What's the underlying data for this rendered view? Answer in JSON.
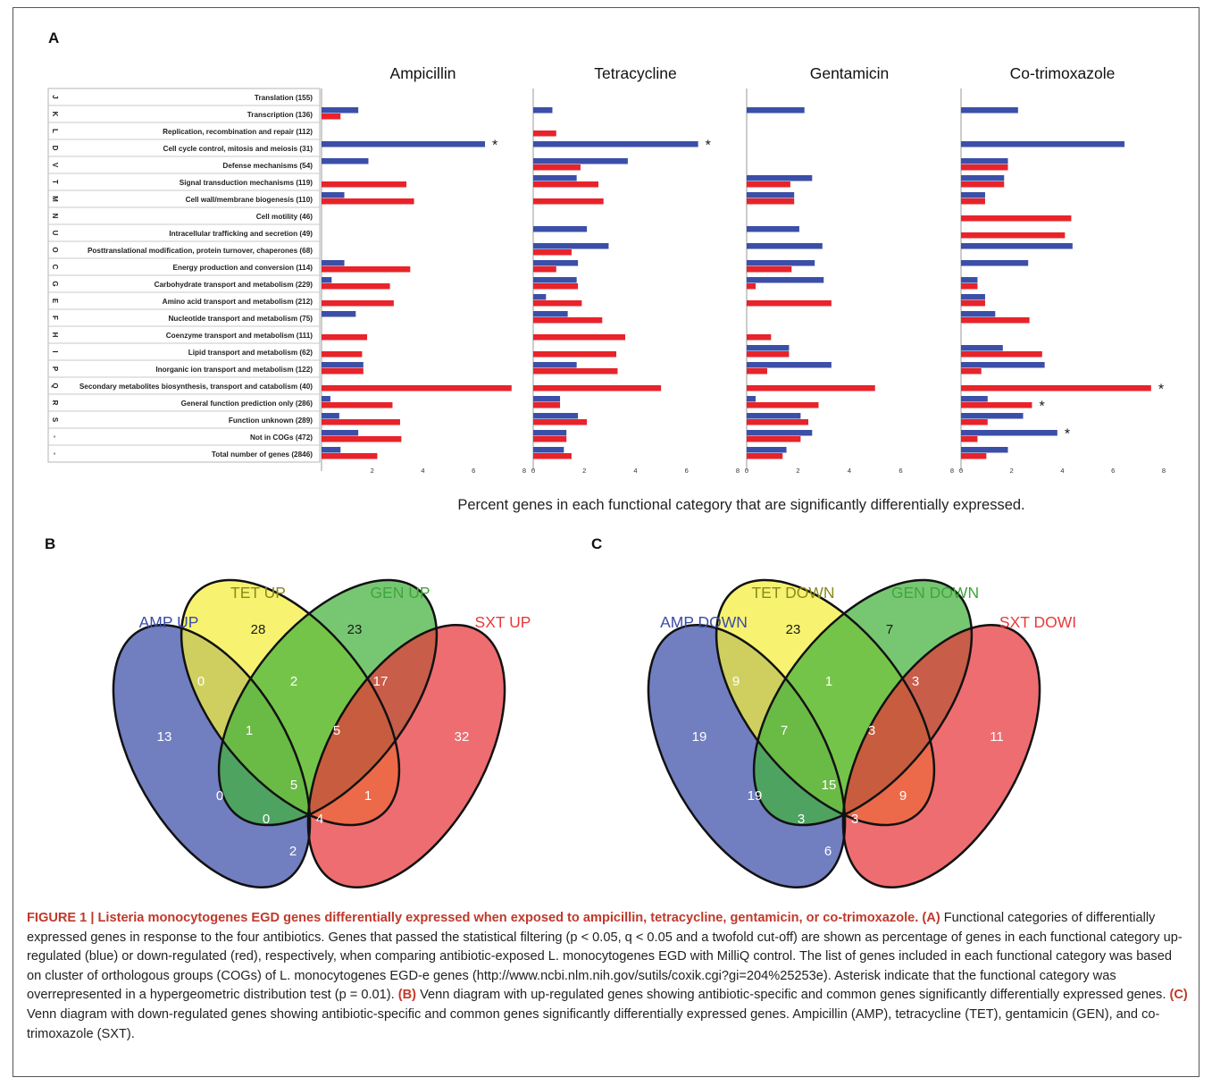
{
  "panel_labels": {
    "a": "A",
    "b": "B",
    "c": "C"
  },
  "chart_data": {
    "type": "bar",
    "orientation": "horizontal",
    "panels": [
      "Ampicillin",
      "Tetracycline",
      "Gentamicin",
      "Co-trimoxazole"
    ],
    "xlim": [
      0,
      8
    ],
    "xticks": [
      0,
      2,
      4,
      6,
      8
    ],
    "xlabel": "Percent genes in each functional category that are significantly differentially expressed.",
    "series_colors": {
      "up": "#3b4fa8",
      "down": "#e8232a"
    },
    "categories": [
      {
        "code": "J",
        "name": "Translation (155)"
      },
      {
        "code": "K",
        "name": "Transcription (136)"
      },
      {
        "code": "L",
        "name": "Replication, recombination and repair (112)"
      },
      {
        "code": "D",
        "name": "Cell cycle control, mitosis and meiosis (31)"
      },
      {
        "code": "V",
        "name": "Defense mechanisms (54)"
      },
      {
        "code": "T",
        "name": "Signal transduction mechanisms (119)"
      },
      {
        "code": "M",
        "name": "Cell wall/membrane biogenesis (110)"
      },
      {
        "code": "N",
        "name": "Cell motility (46)"
      },
      {
        "code": "U",
        "name": "Intracellular trafficking and secretion (49)"
      },
      {
        "code": "O",
        "name": "Posttranslational modification, protein turnover, chaperones (68)"
      },
      {
        "code": "C",
        "name": "Energy production and conversion (114)"
      },
      {
        "code": "G",
        "name": "Carbohydrate transport and metabolism (229)"
      },
      {
        "code": "E",
        "name": "Amino acid transport and metabolism (212)"
      },
      {
        "code": "F",
        "name": "Nucleotide transport and metabolism (75)"
      },
      {
        "code": "H",
        "name": "Coenzyme transport and metabolism (111)"
      },
      {
        "code": "I",
        "name": "Lipid transport and metabolism (62)"
      },
      {
        "code": "P",
        "name": "Inorganic ion transport and metabolism (122)"
      },
      {
        "code": "Q",
        "name": "Secondary metabolites biosynthesis, transport and catabolism (40)"
      },
      {
        "code": "R",
        "name": "General function prediction only (286)"
      },
      {
        "code": "S",
        "name": "Function unknown (289)"
      },
      {
        "code": "-",
        "name": "Not in COGs (472)"
      },
      {
        "code": "-",
        "name": "Total number of genes (2846)"
      }
    ],
    "data": {
      "Ampicillin": {
        "up": [
          0,
          1.45,
          0,
          6.45,
          1.85,
          0,
          0.9,
          0,
          0,
          0,
          0.9,
          0.4,
          0,
          1.35,
          0,
          0,
          1.65,
          0,
          0.35,
          0.7,
          1.45,
          0.75
        ],
        "down": [
          0,
          0.75,
          0,
          0,
          0,
          3.35,
          3.65,
          0,
          0,
          0,
          3.5,
          2.7,
          2.85,
          0,
          1.8,
          1.6,
          1.65,
          7.5,
          2.8,
          3.1,
          3.15,
          2.2
        ],
        "stars": [
          {
            "row": 3,
            "series": "up"
          }
        ]
      },
      "Tetracycline": {
        "up": [
          0,
          0.75,
          0,
          6.45,
          3.7,
          1.7,
          0,
          0,
          2.1,
          2.95,
          1.75,
          1.7,
          0.5,
          1.35,
          0,
          0,
          1.7,
          0,
          1.05,
          1.75,
          1.3,
          1.2
        ],
        "down": [
          0,
          0,
          0.9,
          0,
          1.85,
          2.55,
          2.75,
          0,
          0,
          1.5,
          0.9,
          1.75,
          1.9,
          2.7,
          3.6,
          3.25,
          3.3,
          5.0,
          1.05,
          2.1,
          1.3,
          1.5
        ],
        "stars": [
          {
            "row": 3,
            "series": "up"
          }
        ]
      },
      "Gentamicin": {
        "up": [
          0,
          2.25,
          0,
          0,
          0,
          2.55,
          1.85,
          0,
          2.05,
          2.95,
          2.65,
          3.0,
          0,
          0,
          0,
          1.65,
          3.3,
          0,
          0.35,
          2.1,
          2.55,
          1.55
        ],
        "down": [
          0,
          0,
          0,
          0,
          0,
          1.7,
          1.85,
          0,
          0,
          0,
          1.75,
          0.35,
          3.3,
          0,
          0.95,
          1.65,
          0.8,
          5.0,
          2.8,
          2.4,
          2.1,
          1.4
        ],
        "stars": []
      },
      "Co-trimoxazole": {
        "up": [
          0,
          2.25,
          0,
          6.45,
          1.85,
          1.7,
          0.95,
          0,
          0,
          4.4,
          2.65,
          0.65,
          0.95,
          1.35,
          0,
          1.65,
          3.3,
          0,
          1.05,
          2.45,
          3.8,
          1.85
        ],
        "down": [
          0,
          0,
          0,
          0,
          1.85,
          1.7,
          0.95,
          4.35,
          4.1,
          0,
          0,
          0.65,
          0.95,
          2.7,
          0,
          3.2,
          0.8,
          7.5,
          2.8,
          1.05,
          0.65,
          1.0
        ],
        "stars": [
          {
            "row": 17,
            "series": "down"
          },
          {
            "row": 18,
            "series": "down"
          },
          {
            "row": 20,
            "series": "up"
          }
        ]
      }
    }
  },
  "venn_b": {
    "labels": {
      "amp": "AMP UP",
      "tet": "TET UP",
      "gen": "GEN UP",
      "sxt": "SXT UP"
    },
    "counts": {
      "amp_only": "13",
      "tet_only": "28",
      "gen_only": "23",
      "sxt_only": "32",
      "amp_tet": "0",
      "tet_gen": "2",
      "gen_sxt": "17",
      "amp_tet_gen": "1",
      "tet_gen_sxt": "5",
      "all": "5",
      "amp_gen": "0",
      "tet_sxt": "1",
      "amp_gen_sxt": "0",
      "amp_tet_sxt": "4",
      "amp_sxt": "2"
    }
  },
  "venn_c": {
    "labels": {
      "amp": "AMP DOWN",
      "tet": "TET DOWN",
      "gen": "GEN DOWN",
      "sxt": "SXT DOWI"
    },
    "counts": {
      "amp_only": "19",
      "tet_only": "23",
      "gen_only": "7",
      "sxt_only": "11",
      "amp_tet": "9",
      "tet_gen": "1",
      "gen_sxt": "3",
      "amp_tet_gen": "7",
      "tet_gen_sxt": "3",
      "all": "15",
      "amp_gen": "19",
      "tet_sxt": "9",
      "amp_gen_sxt": "3",
      "amp_tet_sxt": "3",
      "amp_sxt": "6"
    }
  },
  "venn_colors": {
    "amp": "#3a4ca8",
    "tet": "#f4ef3a",
    "gen": "#43b23c",
    "sxt": "#e8343a"
  },
  "venn_label_colors": {
    "amp": "#3a4ca8",
    "tet": "#8a8a1a",
    "gen": "#3ea63a",
    "sxt": "#e83a3a"
  },
  "caption": {
    "title": "FIGURE 1 | Listeria monocytogenes EGD genes differentially expressed when exposed to ampicillin, tetracycline, gentamicin, or co-trimoxazole.",
    "part_a_label": "(A)",
    "part_a": "Functional categories of differentially expressed genes in response to the four antibiotics. Genes that passed the statistical filtering (p < 0.05, q < 0.05 and a twofold cut-off) are shown as percentage of genes in each functional category up-regulated (blue) or down-regulated (red), respectively, when comparing antibiotic-exposed L. monocytogenes EGD with MilliQ control. The list of genes included in each functional category was based on cluster of orthologous groups (COGs) of L. monocytogenes EGD-e genes (http://www.ncbi.nlm.nih.gov/sutils/coxik.cgi?gi=204%25253e). Asterisk indicate that the functional category was overrepresented in a hypergeometric distribution test (p = 0.01).",
    "part_b_label": "(B)",
    "part_b": "Venn diagram with up-regulated genes showing antibiotic-specific and common genes significantly differentially expressed genes.",
    "part_c_label": "(C)",
    "part_c": "Venn diagram with down-regulated genes showing antibiotic-specific and common genes significantly differentially expressed genes. Ampicillin (AMP), tetracycline (TET), gentamicin (GEN), and co-trimoxazole (SXT)."
  }
}
